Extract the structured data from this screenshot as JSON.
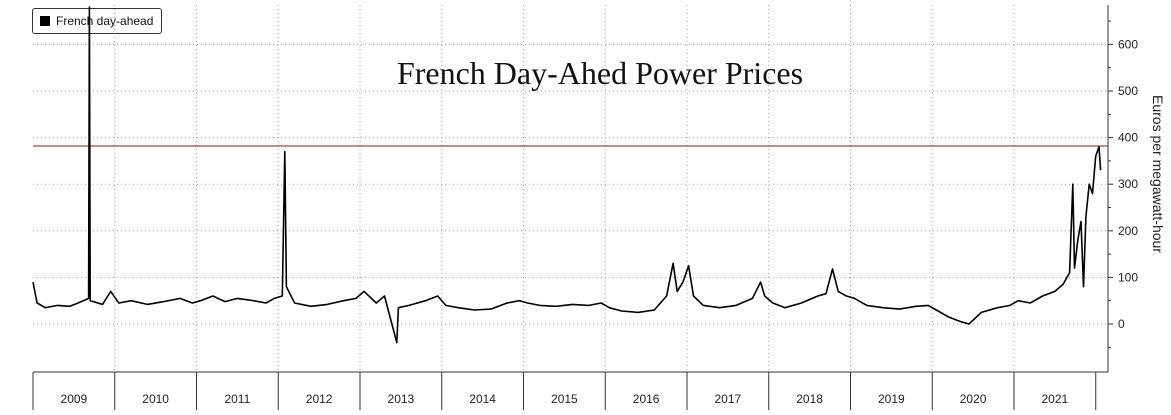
{
  "chart_data": {
    "type": "line",
    "title": "French Day-Ahed Power Prices",
    "ylabel": "Euros per megawatt-hour",
    "ylim": [
      -100,
      680
    ],
    "y_ticks": [
      0,
      100,
      200,
      300,
      400,
      500,
      600
    ],
    "x_categories": [
      "2009",
      "2010",
      "2011",
      "2012",
      "2013",
      "2014",
      "2015",
      "2016",
      "2017",
      "2018",
      "2019",
      "2020",
      "2021"
    ],
    "series": [
      {
        "name": "French day-ahead",
        "color": "#000000",
        "points": [
          [
            2009.0,
            90
          ],
          [
            2009.05,
            45
          ],
          [
            2009.15,
            35
          ],
          [
            2009.3,
            40
          ],
          [
            2009.45,
            38
          ],
          [
            2009.55,
            45
          ],
          [
            2009.68,
            55
          ],
          [
            2009.69,
            680
          ],
          [
            2009.7,
            50
          ],
          [
            2009.85,
            42
          ],
          [
            2009.95,
            70
          ],
          [
            2010.05,
            45
          ],
          [
            2010.2,
            50
          ],
          [
            2010.4,
            42
          ],
          [
            2010.6,
            48
          ],
          [
            2010.8,
            55
          ],
          [
            2010.95,
            45
          ],
          [
            2011.05,
            50
          ],
          [
            2011.2,
            60
          ],
          [
            2011.35,
            48
          ],
          [
            2011.5,
            55
          ],
          [
            2011.7,
            50
          ],
          [
            2011.85,
            45
          ],
          [
            2011.95,
            55
          ],
          [
            2012.05,
            60
          ],
          [
            2012.08,
            370
          ],
          [
            2012.1,
            80
          ],
          [
            2012.2,
            45
          ],
          [
            2012.4,
            38
          ],
          [
            2012.6,
            42
          ],
          [
            2012.8,
            50
          ],
          [
            2012.95,
            55
          ],
          [
            2013.05,
            70
          ],
          [
            2013.2,
            45
          ],
          [
            2013.3,
            60
          ],
          [
            2013.45,
            -40
          ],
          [
            2013.47,
            35
          ],
          [
            2013.6,
            40
          ],
          [
            2013.8,
            50
          ],
          [
            2013.95,
            60
          ],
          [
            2014.05,
            40
          ],
          [
            2014.2,
            35
          ],
          [
            2014.4,
            30
          ],
          [
            2014.6,
            32
          ],
          [
            2014.8,
            45
          ],
          [
            2014.95,
            50
          ],
          [
            2015.05,
            45
          ],
          [
            2015.2,
            40
          ],
          [
            2015.4,
            38
          ],
          [
            2015.6,
            42
          ],
          [
            2015.8,
            40
          ],
          [
            2015.95,
            45
          ],
          [
            2016.05,
            35
          ],
          [
            2016.2,
            28
          ],
          [
            2016.4,
            25
          ],
          [
            2016.6,
            30
          ],
          [
            2016.75,
            60
          ],
          [
            2016.83,
            130
          ],
          [
            2016.88,
            70
          ],
          [
            2016.95,
            90
          ],
          [
            2017.02,
            125
          ],
          [
            2017.08,
            60
          ],
          [
            2017.2,
            40
          ],
          [
            2017.4,
            35
          ],
          [
            2017.6,
            40
          ],
          [
            2017.8,
            55
          ],
          [
            2017.9,
            90
          ],
          [
            2017.95,
            60
          ],
          [
            2018.05,
            45
          ],
          [
            2018.2,
            35
          ],
          [
            2018.4,
            45
          ],
          [
            2018.6,
            60
          ],
          [
            2018.7,
            65
          ],
          [
            2018.78,
            118
          ],
          [
            2018.85,
            70
          ],
          [
            2018.95,
            60
          ],
          [
            2019.05,
            55
          ],
          [
            2019.2,
            40
          ],
          [
            2019.4,
            35
          ],
          [
            2019.6,
            32
          ],
          [
            2019.8,
            38
          ],
          [
            2019.95,
            40
          ],
          [
            2020.05,
            30
          ],
          [
            2020.2,
            15
          ],
          [
            2020.35,
            5
          ],
          [
            2020.45,
            0
          ],
          [
            2020.6,
            25
          ],
          [
            2020.8,
            35
          ],
          [
            2020.95,
            40
          ],
          [
            2021.05,
            50
          ],
          [
            2021.2,
            45
          ],
          [
            2021.35,
            60
          ],
          [
            2021.5,
            70
          ],
          [
            2021.6,
            85
          ],
          [
            2021.68,
            110
          ],
          [
            2021.72,
            300
          ],
          [
            2021.74,
            120
          ],
          [
            2021.78,
            180
          ],
          [
            2021.82,
            220
          ],
          [
            2021.85,
            80
          ],
          [
            2021.88,
            230
          ],
          [
            2021.92,
            300
          ],
          [
            2021.96,
            280
          ],
          [
            2022.0,
            360
          ],
          [
            2022.04,
            380
          ],
          [
            2022.06,
            330
          ]
        ]
      }
    ],
    "reference_line": {
      "value": 382,
      "color": "#8b1a1a"
    },
    "grid": true,
    "legend_position": "top-left"
  }
}
